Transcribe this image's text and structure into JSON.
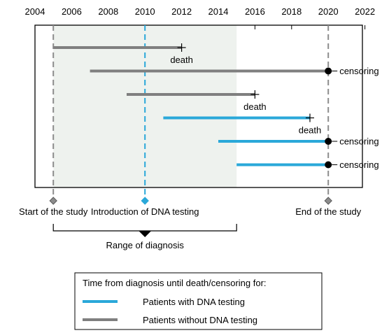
{
  "colors": {
    "with_dna": "#2aa8d9",
    "without_dna": "#7f7f7f",
    "range_shade": "#eef2ee",
    "marker_gray": "#8c8c8c",
    "black": "#000000"
  },
  "timeline": {
    "years": [
      "2004",
      "2006",
      "2008",
      "2010",
      "2012",
      "2014",
      "2016",
      "2018",
      "2020",
      "2022"
    ],
    "min_year": 2004,
    "max_year": 2022,
    "range_start": 2005,
    "range_end": 2015,
    "markers": [
      {
        "year": 2005,
        "label": "Start of the study",
        "kind": "gray"
      },
      {
        "year": 2010,
        "label": "Introduction of DNA testing",
        "kind": "blue"
      },
      {
        "year": 2020,
        "label": "End of the study",
        "kind": "gray"
      }
    ],
    "patients": [
      {
        "group": "without",
        "start": 2005,
        "end": 2012,
        "outcome": "death",
        "label": "death"
      },
      {
        "group": "without",
        "start": 2007,
        "end": 2020,
        "outcome": "censoring",
        "label": "censoring"
      },
      {
        "group": "without",
        "start": 2009,
        "end": 2016,
        "outcome": "death",
        "label": "death"
      },
      {
        "group": "with",
        "start": 2011,
        "end": 2019,
        "outcome": "death",
        "label": "death"
      },
      {
        "group": "with",
        "start": 2014,
        "end": 2020,
        "outcome": "censoring",
        "label": "censoring"
      },
      {
        "group": "with",
        "start": 2015,
        "end": 2020,
        "outcome": "censoring",
        "label": "censoring"
      }
    ],
    "range_label": "Range of diagnosis"
  },
  "legend": {
    "title": "Time from diagnosis until death/censoring for:",
    "items": [
      {
        "group": "with",
        "label": "Patients with DNA testing"
      },
      {
        "group": "without",
        "label": "Patients without DNA testing"
      }
    ]
  }
}
